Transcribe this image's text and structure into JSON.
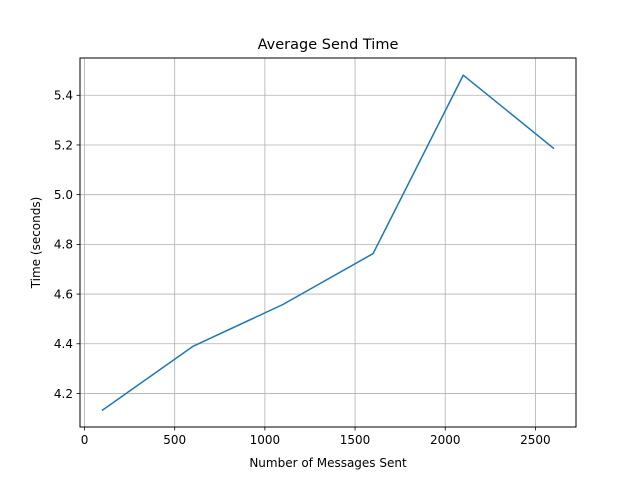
{
  "chart_data": {
    "type": "line",
    "title": "Average Send Time",
    "xlabel": "Number of Messages Sent",
    "ylabel": "Time (seconds)",
    "xlim": [
      -25,
      2725
    ],
    "ylim": [
      4.065,
      5.55
    ],
    "xticks": [
      0,
      500,
      1000,
      1500,
      2000,
      2500
    ],
    "yticks": [
      4.2,
      4.4,
      4.6,
      4.8,
      5.0,
      5.2,
      5.4
    ],
    "xtick_labels": [
      "0",
      "500",
      "1000",
      "1500",
      "2000",
      "2500"
    ],
    "ytick_labels": [
      "4.2",
      "4.4",
      "4.6",
      "4.8",
      "5.0",
      "5.2",
      "5.4"
    ],
    "grid": true,
    "series": [
      {
        "color": "#1f77b4",
        "x": [
          100,
          600,
          1100,
          1600,
          2100,
          2600
        ],
        "y": [
          4.133,
          4.389,
          4.558,
          4.763,
          5.481,
          5.187
        ]
      }
    ]
  }
}
